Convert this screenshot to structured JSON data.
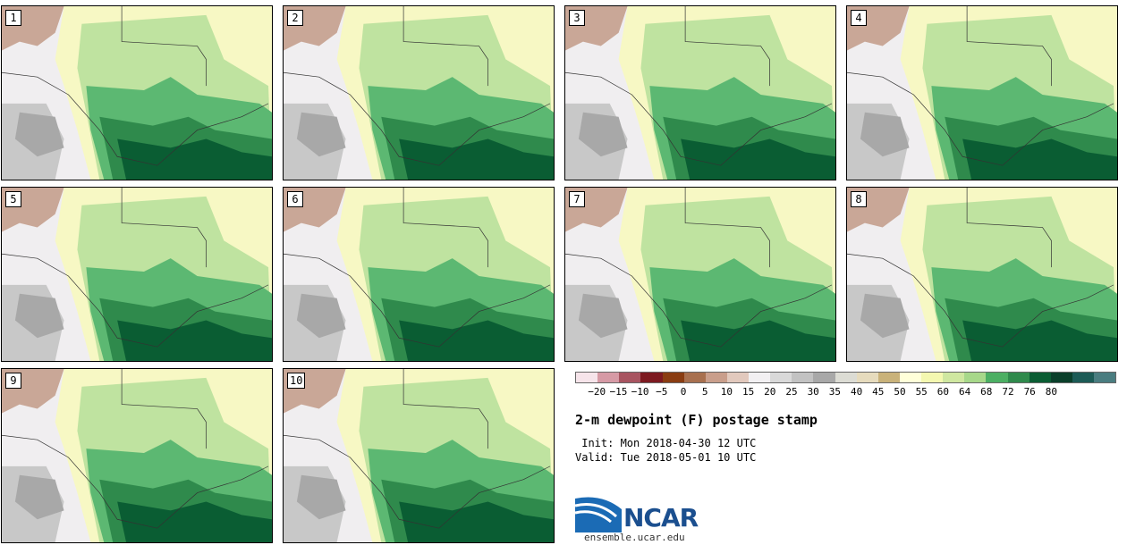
{
  "panels": [
    {
      "label": "1"
    },
    {
      "label": "2"
    },
    {
      "label": "3"
    },
    {
      "label": "4"
    },
    {
      "label": "5"
    },
    {
      "label": "6"
    },
    {
      "label": "7"
    },
    {
      "label": "8"
    },
    {
      "label": "9"
    },
    {
      "label": "10"
    }
  ],
  "colorbar": {
    "colors": [
      "#f6e4ea",
      "#d69aa5",
      "#a85460",
      "#7d1a20",
      "#8a3d12",
      "#a8704f",
      "#c99e8b",
      "#e2c9bd",
      "#f2f0f2",
      "#d9d9d9",
      "#c2c2c2",
      "#a8a8a8",
      "#dcdcd4",
      "#e6dbbd",
      "#c9b27a",
      "#ffffd9",
      "#f4f8b0",
      "#cfe7a0",
      "#a7d88a",
      "#4caf63",
      "#2f8a4c",
      "#0a5d33",
      "#0a3f2a",
      "#1c5b56",
      "#4a7d80"
    ],
    "ticks": [
      "−20",
      "−15",
      "−10",
      "−5",
      "0",
      "5",
      "10",
      "15",
      "20",
      "25",
      "30",
      "35",
      "40",
      "45",
      "50",
      "55",
      "60",
      "64",
      "68",
      "72",
      "76",
      "80"
    ]
  },
  "title": "2-m dewpoint (F) postage stamp",
  "init": " Init: Mon 2018-04-30 12 UTC",
  "valid": "Valid: Tue 2018-05-01 10 UTC",
  "logo": {
    "text": "NCAR",
    "site": "ensemble.ucar.edu"
  }
}
